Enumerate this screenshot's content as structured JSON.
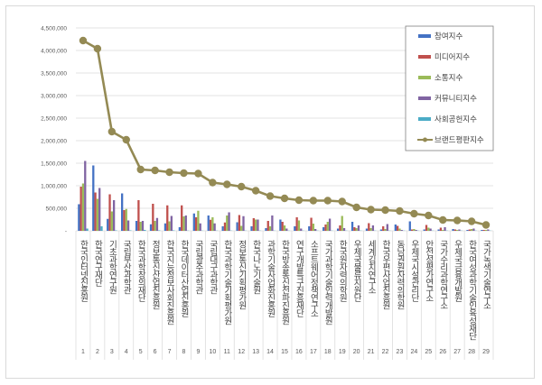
{
  "chart_data": {
    "type": "bar+line",
    "title": "",
    "xlabel": "",
    "ylabel": "",
    "ylim": [
      0,
      4500000
    ],
    "yticks": [
      "-",
      "500,000",
      "1,000,000",
      "1,500,000",
      "2,000,000",
      "2,500,000",
      "3,000,000",
      "3,500,000",
      "4,000,000",
      "4,500,000"
    ],
    "grid": true,
    "legend_position": "top-right",
    "ranks": [
      "1",
      "2",
      "3",
      "4",
      "5",
      "6",
      "7",
      "8",
      "9",
      "10",
      "11",
      "12",
      "13",
      "14",
      "15",
      "16",
      "17",
      "18",
      "19",
      "20",
      "21",
      "22",
      "23",
      "24",
      "25",
      "26",
      "27",
      "28",
      "29"
    ],
    "categories": [
      "한국인터넷진흥원",
      "한국연구재단",
      "기초과학연구원",
      "국립부산과학관",
      "한국과학창의재단",
      "정보통신산업진흥원",
      "한국지능정보사회진흥원",
      "한국데이터산업진흥원",
      "국립광주과학관",
      "국립대구과학관",
      "한국과학기술기획평가원",
      "정보통신기획평가원",
      "한국나노기술원",
      "과학기술사업화진흥원",
      "한국방송통신전파진흥원",
      "연구개발특구진흥재단",
      "소프트웨어정책연구소",
      "국가과학기술인력개발원",
      "한국원자력의학원",
      "우체국물류지원단",
      "세계김치연구소",
      "한국우편사업진흥원",
      "동남권원자력의학원",
      "우체국시설관리단",
      "안전성평가연구소",
      "국가수리과학연구소",
      "우체국금융개발원",
      "한국여성과학기술인육성재단",
      "국가녹색기술연구소"
    ],
    "series": [
      {
        "name": "참여지수",
        "type": "bar",
        "color": "#4472c4",
        "values": [
          590000,
          1450000,
          265000,
          830000,
          220000,
          145000,
          165000,
          80000,
          385000,
          340000,
          100000,
          190000,
          100000,
          60000,
          250000,
          100000,
          100000,
          80000,
          50000,
          200000,
          50000,
          30000,
          140000,
          210000,
          30000,
          30000,
          40000,
          20000,
          20000
        ]
      },
      {
        "name": "미디어지수",
        "type": "bar",
        "color": "#c0504d",
        "values": [
          980000,
          850000,
          810000,
          460000,
          680000,
          600000,
          565000,
          565000,
          300000,
          245000,
          185000,
          350000,
          280000,
          220000,
          200000,
          300000,
          290000,
          140000,
          120000,
          80000,
          170000,
          100000,
          110000,
          30000,
          130000,
          70000,
          30000,
          30000,
          20000
        ]
      },
      {
        "name": "소통지수",
        "type": "bar",
        "color": "#9bbb59",
        "values": [
          1050000,
          710000,
          430000,
          485000,
          200000,
          220000,
          210000,
          320000,
          445000,
          300000,
          340000,
          110000,
          250000,
          100000,
          120000,
          230000,
          160000,
          200000,
          330000,
          60000,
          60000,
          40000,
          50000,
          40000,
          70000,
          20000,
          20000,
          40000,
          20000
        ]
      },
      {
        "name": "커뮤니티지수",
        "type": "bar",
        "color": "#8064a2",
        "values": [
          1550000,
          950000,
          680000,
          230000,
          220000,
          285000,
          330000,
          340000,
          165000,
          165000,
          410000,
          325000,
          250000,
          340000,
          50000,
          50000,
          40000,
          270000,
          60000,
          120000,
          120000,
          150000,
          20000,
          20000,
          50000,
          80000,
          30000,
          50000,
          30000
        ]
      },
      {
        "name": "사회공헌지수",
        "type": "bar",
        "color": "#4bacc6",
        "values": [
          50000,
          100000,
          10000,
          10000,
          20000,
          10000,
          10000,
          5000,
          5000,
          5000,
          5000,
          5000,
          5000,
          5000,
          5000,
          5000,
          5000,
          5000,
          5000,
          5000,
          5000,
          5000,
          5000,
          5000,
          5000,
          5000,
          5000,
          5000,
          5000
        ]
      },
      {
        "name": "브랜드평판지수",
        "type": "line",
        "color": "#948a54",
        "values": [
          4220000,
          4040000,
          2200000,
          2020000,
          1360000,
          1340000,
          1300000,
          1280000,
          1270000,
          1070000,
          1030000,
          980000,
          890000,
          770000,
          720000,
          680000,
          670000,
          670000,
          650000,
          520000,
          470000,
          460000,
          440000,
          380000,
          340000,
          240000,
          230000,
          210000,
          130000
        ]
      }
    ]
  }
}
